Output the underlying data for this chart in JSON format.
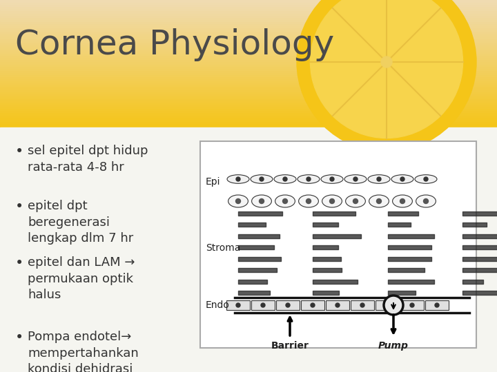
{
  "title": "Cornea Physiology",
  "title_color": "#4a4a4a",
  "title_fontsize": 36,
  "bg_color": "#f5f5f0",
  "header_bg_top": "#f5c518",
  "header_bg_bottom": "#e8e0c0",
  "bullet_points": [
    "sel epitel dpt hidup\nrata-rata 4-8 hr",
    "epitel dpt\nberegenerasi\nlengkap dlm 7 hr",
    "epitel dan LAM →\npermukaan optik\nhalus",
    "Pompa endotel→\nmempertahankan\nkondisi dehidrasi\nrelatif"
  ],
  "bullet_color": "#333333",
  "bullet_fontsize": 13,
  "diagram_border_color": "#aaaaaa",
  "diagram_bg": "#ffffff",
  "label_epi": "Epi",
  "label_stroma": "Stroma",
  "label_endo": "Endo",
  "label_barrier": "Barrier",
  "label_pump": "Pump",
  "diagram_label_fontsize": 10,
  "diagram_label_color": "#222222"
}
